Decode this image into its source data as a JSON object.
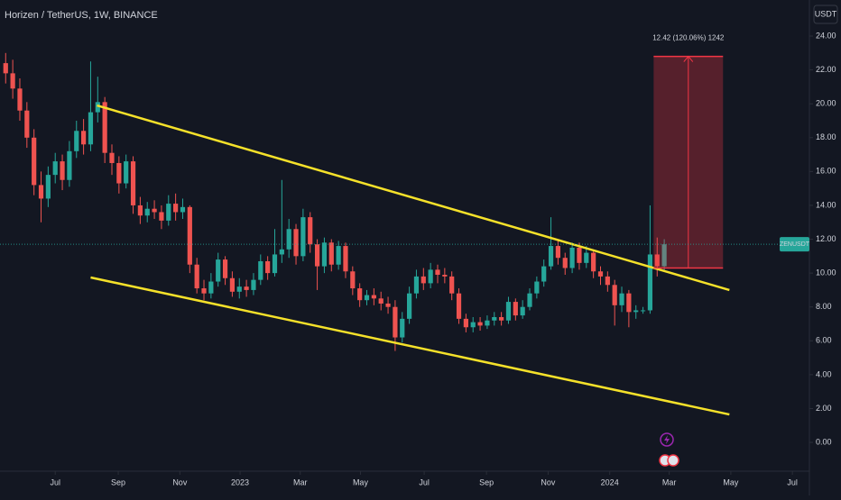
{
  "chart_data": {
    "type": "candlestick",
    "title": "Horizen / TetherUS, 1W, BINANCE",
    "currency": "USDT",
    "symbol_tag": "ZENUSDT",
    "up_color": "#26a69a",
    "down_color": "#ef5350",
    "xlim": [
      -7.8,
      106.5
    ],
    "ylim": [
      -1.7,
      26.13
    ],
    "xticks": [
      {
        "value": 0,
        "label": "Jul"
      },
      {
        "value": 8.9,
        "label": "Sep"
      },
      {
        "value": 17.6,
        "label": "Nov"
      },
      {
        "value": 26.1,
        "label": "2023"
      },
      {
        "value": 34.6,
        "label": "Mar"
      },
      {
        "value": 43.1,
        "label": "May"
      },
      {
        "value": 52.1,
        "label": "Jul"
      },
      {
        "value": 60.9,
        "label": "Sep"
      },
      {
        "value": 69.6,
        "label": "Nov"
      },
      {
        "value": 78.3,
        "label": "2024"
      },
      {
        "value": 86.7,
        "label": "Mar"
      },
      {
        "value": 95.4,
        "label": "May"
      },
      {
        "value": 104.1,
        "label": "Jul"
      }
    ],
    "yticks": [
      {
        "value": 0,
        "label": "0.00"
      },
      {
        "value": 2,
        "label": "2.00"
      },
      {
        "value": 4,
        "label": "4.00"
      },
      {
        "value": 6,
        "label": "6.00"
      },
      {
        "value": 8,
        "label": "8.00"
      },
      {
        "value": 10,
        "label": "10.00"
      },
      {
        "value": 12,
        "label": "12.00"
      },
      {
        "value": 14,
        "label": "14.00"
      },
      {
        "value": 16,
        "label": "16.00"
      },
      {
        "value": 18,
        "label": "18.00"
      },
      {
        "value": 20,
        "label": "20.00"
      },
      {
        "value": 22,
        "label": "22.00"
      },
      {
        "value": 24,
        "label": "24.00"
      }
    ],
    "x": [
      -7,
      -6,
      -5,
      -4,
      -3,
      -2,
      -1,
      0,
      1,
      2,
      3,
      4,
      5,
      6,
      7,
      8,
      9,
      10,
      11,
      12,
      13,
      14,
      15,
      16,
      17,
      18,
      19,
      20,
      21,
      22,
      23,
      24,
      25,
      26,
      27,
      28,
      29,
      30,
      31,
      32,
      33,
      34,
      35,
      36,
      37,
      38,
      39,
      40,
      41,
      42,
      43,
      44,
      45,
      46,
      47,
      48,
      49,
      50,
      51,
      52,
      53,
      54,
      55,
      56,
      57,
      58,
      59,
      60,
      61,
      62,
      63,
      64,
      65,
      66,
      67,
      68,
      69,
      70,
      71,
      72,
      73,
      74,
      75,
      76,
      77,
      78,
      79,
      80,
      81,
      82,
      83,
      84,
      85,
      86
    ],
    "open": [
      22.4,
      21.8,
      20.9,
      19.6,
      18.0,
      15.2,
      14.4,
      15.8,
      16.6,
      15.5,
      17.2,
      18.4,
      17.6,
      19.5,
      20.1,
      17.1,
      16.5,
      15.3,
      16.6,
      14.0,
      13.4,
      13.8,
      13.6,
      13.1,
      14.1,
      13.6,
      13.9,
      10.5,
      9.1,
      8.8,
      9.5,
      10.8,
      9.7,
      8.9,
      9.2,
      9.0,
      9.6,
      10.7,
      10.0,
      11.1,
      11.4,
      12.6,
      11.0,
      13.3,
      11.7,
      10.4,
      11.8,
      10.5,
      11.6,
      10.1,
      9.1,
      8.4,
      8.7,
      8.5,
      8.2,
      8.0,
      6.2,
      7.3,
      8.8,
      9.8,
      9.4,
      10.2,
      9.9,
      9.8,
      8.8,
      7.3,
      6.8,
      7.1,
      6.9,
      7.2,
      7.4,
      7.2,
      8.3,
      7.5,
      8.0,
      8.8,
      9.5,
      10.4,
      11.6,
      10.9,
      10.3,
      11.5,
      10.6,
      11.2,
      10.1,
      9.8,
      9.3,
      8.1,
      8.8,
      7.7,
      7.8,
      7.8,
      11.1,
      10.4
    ],
    "high": [
      23.0,
      22.6,
      21.5,
      20.1,
      18.5,
      16.0,
      16.3,
      17.1,
      17.0,
      17.8,
      19.0,
      19.1,
      22.5,
      21.6,
      20.4,
      17.6,
      16.9,
      17.0,
      16.9,
      14.5,
      14.2,
      14.3,
      14.0,
      14.6,
      14.7,
      14.4,
      14.0,
      10.9,
      9.6,
      10.0,
      11.2,
      11.0,
      10.1,
      9.7,
      9.6,
      10.0,
      11.1,
      11.0,
      12.6,
      15.5,
      13.2,
      12.9,
      13.8,
      13.6,
      12.0,
      12.1,
      12.0,
      11.9,
      11.8,
      10.4,
      9.4,
      9.0,
      9.1,
      8.9,
      8.6,
      8.4,
      7.7,
      9.2,
      10.2,
      10.3,
      10.6,
      10.5,
      10.3,
      10.1,
      9.1,
      7.6,
      7.4,
      7.4,
      7.5,
      7.7,
      7.7,
      8.6,
      8.5,
      8.4,
      9.1,
      9.8,
      10.8,
      13.3,
      12.0,
      11.2,
      11.8,
      11.8,
      11.6,
      11.4,
      10.4,
      10.1,
      9.6,
      9.2,
      9.0,
      8.1,
      8.0,
      14.0,
      12.1,
      12.0
    ],
    "low": [
      21.2,
      20.3,
      19.0,
      17.4,
      14.6,
      13.0,
      13.9,
      15.3,
      14.9,
      15.1,
      16.8,
      17.0,
      17.2,
      18.9,
      16.5,
      15.8,
      14.7,
      15.0,
      13.5,
      12.9,
      13.0,
      13.2,
      12.6,
      12.8,
      13.1,
      13.2,
      10.0,
      8.8,
      8.4,
      8.5,
      9.2,
      9.3,
      8.6,
      8.5,
      8.6,
      8.7,
      9.3,
      9.6,
      9.8,
      10.6,
      10.9,
      10.5,
      10.7,
      11.2,
      9.0,
      10.0,
      10.1,
      10.2,
      9.7,
      8.7,
      8.0,
      8.1,
      8.1,
      7.8,
      7.6,
      5.4,
      5.9,
      7.0,
      8.5,
      9.0,
      9.1,
      9.4,
      9.4,
      8.4,
      7.0,
      6.5,
      6.5,
      6.6,
      6.7,
      6.9,
      6.9,
      7.0,
      7.2,
      7.3,
      7.8,
      8.5,
      9.2,
      10.2,
      10.5,
      9.9,
      10.0,
      10.2,
      10.3,
      9.7,
      9.3,
      8.9,
      6.9,
      7.7,
      6.8,
      7.3,
      7.6,
      7.6,
      9.8,
      10.1
    ],
    "close": [
      21.8,
      20.9,
      19.6,
      18.0,
      15.2,
      14.4,
      15.8,
      16.6,
      15.5,
      17.2,
      18.4,
      17.6,
      19.5,
      20.1,
      17.1,
      16.5,
      15.3,
      16.6,
      14.0,
      13.4,
      13.8,
      13.6,
      13.1,
      14.1,
      13.6,
      13.9,
      10.5,
      9.1,
      8.8,
      9.5,
      10.8,
      9.7,
      8.9,
      9.2,
      9.0,
      9.6,
      10.7,
      10.0,
      11.1,
      11.4,
      12.6,
      11.0,
      13.3,
      11.7,
      10.4,
      11.8,
      10.5,
      11.6,
      10.1,
      9.1,
      8.4,
      8.7,
      8.5,
      8.2,
      8.0,
      6.2,
      7.3,
      8.8,
      9.8,
      9.4,
      10.2,
      9.9,
      9.8,
      8.8,
      7.3,
      6.8,
      7.1,
      6.9,
      7.2,
      7.4,
      7.2,
      8.3,
      7.5,
      8.0,
      8.8,
      9.5,
      10.4,
      11.6,
      10.9,
      10.3,
      11.5,
      10.6,
      11.2,
      10.1,
      9.8,
      9.3,
      8.1,
      8.8,
      7.7,
      7.8,
      7.8,
      11.1,
      10.4,
      11.7
    ],
    "trendlines": [
      {
        "color": "#f5e12a",
        "x": [
          5.9,
          95.2
        ],
        "y": [
          19.9,
          9.0
        ]
      },
      {
        "color": "#f5e12a",
        "x": [
          5.0,
          95.2
        ],
        "y": [
          9.74,
          1.65
        ]
      }
    ],
    "projection": {
      "x": [
        84.5,
        94.3
      ],
      "low": 10.3,
      "high": 22.8,
      "arrow_x": 89.4,
      "color": "#f23645",
      "label": "12.42 (120.06%) 1242"
    }
  }
}
